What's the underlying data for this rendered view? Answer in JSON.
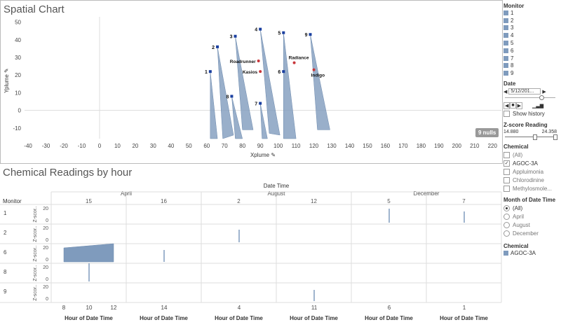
{
  "spatial": {
    "title": "Spatial Chart",
    "xlabel": "Xplume",
    "ylabel": "Yplume",
    "nulls": "9 nulls",
    "xticks": [
      "-40",
      "-30",
      "-20",
      "-10",
      "0",
      "10",
      "20",
      "30",
      "40",
      "50",
      "60",
      "70",
      "80",
      "90",
      "100",
      "110",
      "120",
      "130",
      "140",
      "150",
      "160",
      "170",
      "180",
      "190",
      "200",
      "210",
      "220"
    ],
    "yticks": [
      "50",
      "40",
      "30",
      "20",
      "10",
      "0",
      "-10"
    ]
  },
  "chart_data": [
    {
      "type": "scatter",
      "title": "Spatial Chart",
      "xlabel": "Xplume",
      "ylabel": "Yplume",
      "xlim": [
        -42,
        225
      ],
      "ylim": [
        -16,
        53
      ],
      "monitors": [
        {
          "label": "1",
          "x": 62,
          "y": 22
        },
        {
          "label": "2",
          "x": 66,
          "y": 36
        },
        {
          "label": "3",
          "x": 76,
          "y": 42
        },
        {
          "label": "4",
          "x": 90,
          "y": 46
        },
        {
          "label": "5",
          "x": 103,
          "y": 44
        },
        {
          "label": "6",
          "x": 103,
          "y": 22
        },
        {
          "label": "7",
          "x": 90,
          "y": 4
        },
        {
          "label": "8",
          "x": 74,
          "y": 8
        },
        {
          "label": "9",
          "x": 118,
          "y": 43
        }
      ],
      "factories": [
        {
          "label": "Roadrunner",
          "x": 89,
          "y": 28
        },
        {
          "label": "Kasios",
          "x": 90,
          "y": 22
        },
        {
          "label": "Radiance",
          "x": 109,
          "y": 27
        },
        {
          "label": "Indigo",
          "x": 120,
          "y": 23
        }
      ]
    },
    {
      "type": "line",
      "title": "Chemical Readings by hour",
      "xlabel": "Hour of Date Time",
      "series_name": "AGOC-3A"
    }
  ],
  "readings": {
    "title": "Chemical Readings by hour",
    "column_header": "Date Time",
    "row_header": "Monitor",
    "months": [
      "April",
      "August",
      "December"
    ],
    "days": [
      "15",
      "16",
      "2",
      "12",
      "5",
      "7"
    ],
    "rows": [
      "1",
      "2",
      "6",
      "8",
      "9"
    ],
    "ylabel": "Z-scor..",
    "yticks": [
      "20",
      "0"
    ],
    "hours": [
      "8",
      "10",
      "12",
      "14",
      "4",
      "11",
      "6",
      "1"
    ],
    "xlabel": "Hour of Date Time"
  },
  "sidebar": {
    "monitor_title": "Monitor",
    "monitors": [
      "1",
      "2",
      "3",
      "4",
      "5",
      "6",
      "7",
      "8",
      "9"
    ],
    "date_title": "Date",
    "date_value": "5/12/201...",
    "show_history": "Show history",
    "zscore_title": "Z-score Reading",
    "zscore_min": "14.880",
    "zscore_max": "24.358",
    "chemical_title": "Chemical",
    "chemicals": [
      {
        "label": "(All)",
        "checked": false
      },
      {
        "label": "AGOC-3A",
        "checked": true
      },
      {
        "label": "Appluimonia",
        "checked": false
      },
      {
        "label": "Chlorodinine",
        "checked": false
      },
      {
        "label": "Methylosmole...",
        "checked": false
      }
    ],
    "month_title": "Month of Date Time",
    "months": [
      {
        "label": "(All)",
        "selected": true
      },
      {
        "label": "April",
        "selected": false
      },
      {
        "label": "August",
        "selected": false
      },
      {
        "label": "December",
        "selected": false
      }
    ],
    "legend_title": "Chemical",
    "legend_item": "AGOC-3A",
    "accent": "#7f9bbd"
  }
}
